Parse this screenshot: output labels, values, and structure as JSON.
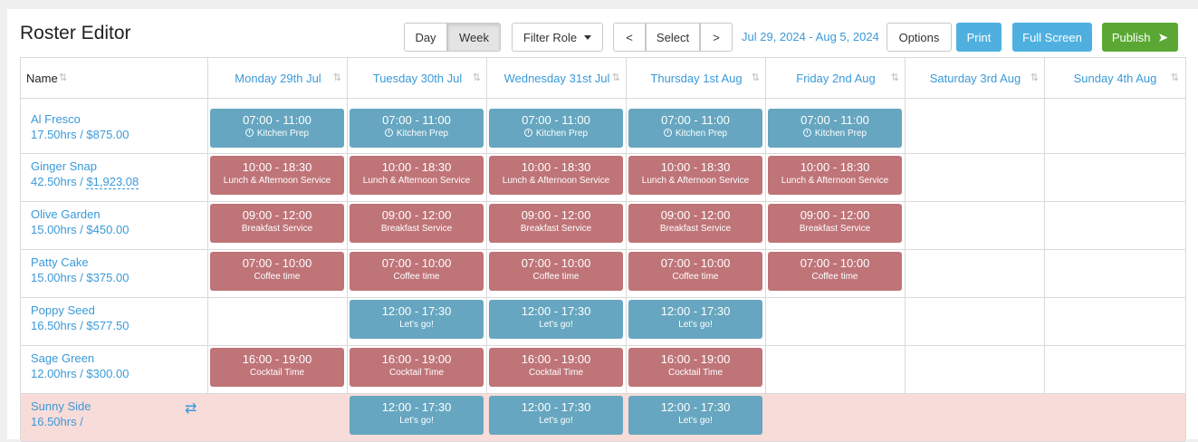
{
  "app": {
    "title": "Roster Editor"
  },
  "toolbar": {
    "day": "Day",
    "week": "Week",
    "filter_role": "Filter Role",
    "prev": "<",
    "select": "Select",
    "next": ">",
    "date_range": "Jul 29, 2024 - Aug 5, 2024",
    "options": "Options",
    "print": "Print",
    "full_screen": "Full Screen",
    "publish": "Publish"
  },
  "columns": {
    "name": "Name",
    "days": [
      "Monday 29th Jul",
      "Tuesday 30th Jul",
      "Wednesday 31st Jul",
      "Thursday 1st Aug",
      "Friday 2nd Aug",
      "Saturday 3rd Aug",
      "Sunday 4th Aug"
    ]
  },
  "employees": [
    {
      "name": "Al Fresco",
      "pay": "17.50hrs / $875.00"
    },
    {
      "name": "Ginger Snap",
      "hours": "42.50hrs / ",
      "pay": "$1,923.08"
    },
    {
      "name": "Olive Garden",
      "pay": "15.00hrs / $450.00"
    },
    {
      "name": "Patty Cake",
      "pay": "15.00hrs / $375.00"
    },
    {
      "name": "Poppy Seed",
      "pay": "16.50hrs / $577.50"
    },
    {
      "name": "Sage Green",
      "pay": "12.00hrs / $300.00"
    },
    {
      "name": "Sunny Side",
      "pay": "16.50hrs / "
    }
  ],
  "shifts": {
    "kitchen": {
      "time": "07:00 - 11:00",
      "desc": "Kitchen Prep"
    },
    "lunch": {
      "time": "10:00 - 18:30",
      "desc": "Lunch & Afternoon Service"
    },
    "breakfast": {
      "time": "09:00 - 12:00",
      "desc": "Breakfast Service"
    },
    "coffee": {
      "time": "07:00 - 10:00",
      "desc": "Coffee time"
    },
    "letsgo": {
      "time": "12:00 - 17:30",
      "desc": "Let's go!"
    },
    "cocktail": {
      "time": "16:00 - 19:00",
      "desc": "Cocktail Time"
    }
  },
  "colors": {
    "accent": "#3a9ad9",
    "shift_blue": "#66a6c0",
    "shift_red": "#bf7478",
    "alert_row": "#f8dcd9",
    "publish": "#5aa833",
    "print": "#4fb0e0"
  },
  "icons": {
    "sort": "sort-icon",
    "shuffle": "shuffle-icon",
    "clock": "clock-icon",
    "plane": "paper-plane-icon"
  }
}
